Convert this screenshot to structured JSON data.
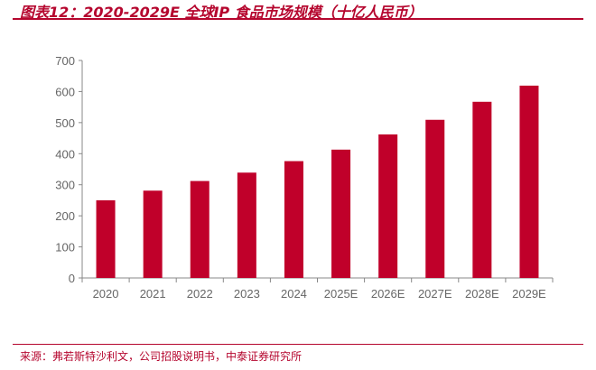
{
  "title": "图表12：2020-2029E 全球IP 食品市场规模（十亿人民币）",
  "source": "来源：弗若斯特沙利文，公司招股说明书，中泰证券研究所",
  "chart_data": {
    "type": "bar",
    "title": "图表12：2020-2029E 全球IP 食品市场规模（十亿人民币）",
    "categories": [
      "2020",
      "2021",
      "2022",
      "2023",
      "2024",
      "2025E",
      "2026E",
      "2027E",
      "2028E",
      "2029E"
    ],
    "values": [
      250,
      281,
      312,
      339,
      376,
      413,
      462,
      509,
      567,
      619
    ],
    "ylim": [
      0,
      700
    ],
    "yticks": [
      0,
      100,
      200,
      300,
      400,
      500,
      600,
      700
    ],
    "xlabel": "",
    "ylabel": "",
    "grid": false,
    "bar_color": "#c0002a"
  }
}
